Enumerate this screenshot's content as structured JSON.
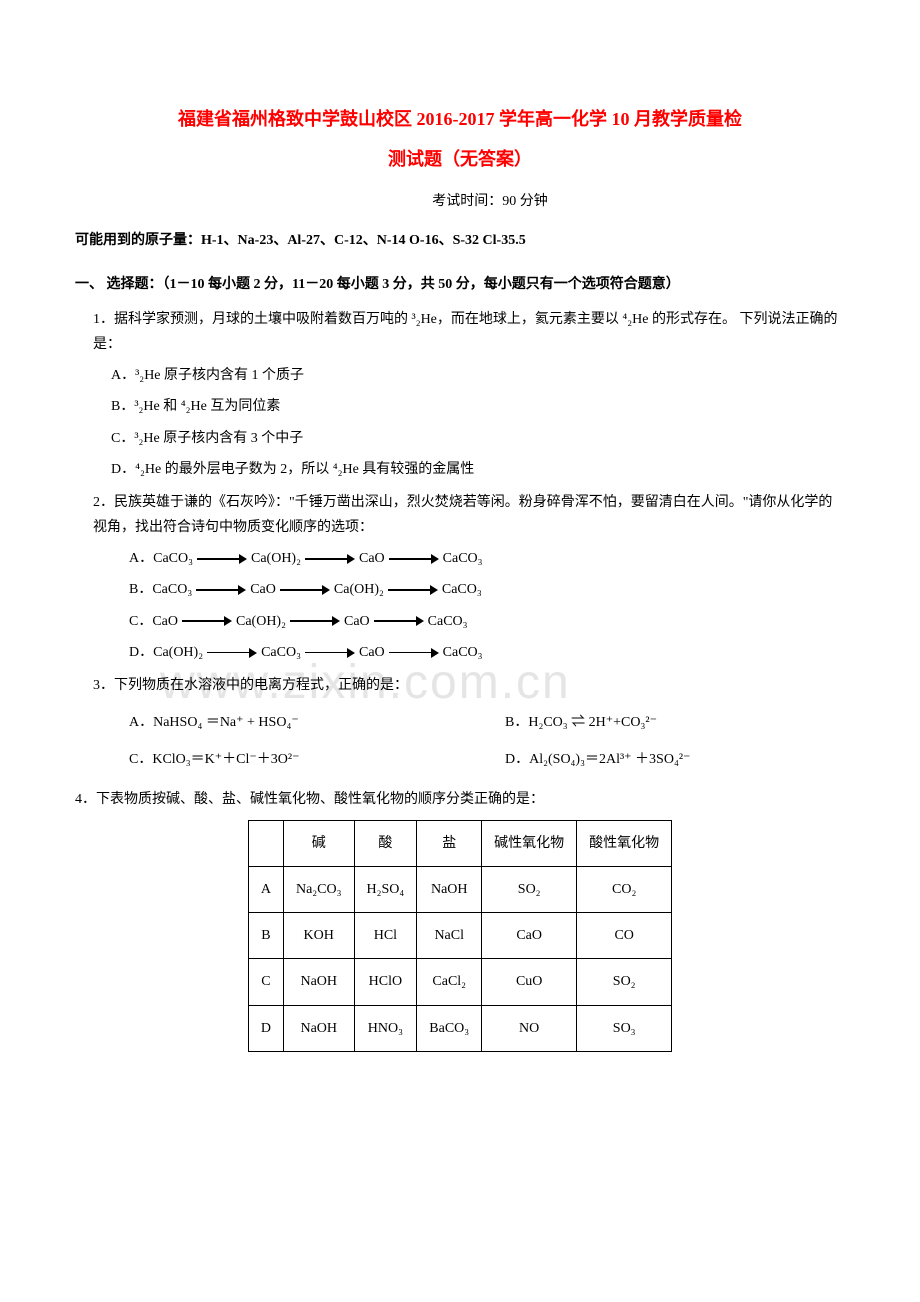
{
  "title_line1": "福建省福州格致中学鼓山校区 2016-2017 学年高一化学 10 月教学质量检",
  "title_line2": "测试题（无答案）",
  "exam_time": "考试时间：90 分钟",
  "atomic_mass": "可能用到的原子量：H-1、Na-23、Al-27、C-12、N-14  O-16、S-32  Cl-35.5",
  "section1": "一、 选择题：（1－10 每小题 2 分，11－20 每小题 3 分，共 50 分，每小题只有一个选项符合题意）",
  "q1": {
    "text": "1．据科学家预测，月球的土壤中吸附着数百万吨的 ³₂He，而在地球上，氦元素主要以 ⁴₂He 的形式存在。 下列说法正确的是：",
    "A": "A．³₂He 原子核内含有 1 个质子",
    "B": "B．³₂He 和 ⁴₂He 互为同位素",
    "C": "C．³₂He 原子核内含有 3 个中子",
    "D": "D．⁴₂He 的最外层电子数为 2，所以 ⁴₂He 具有较强的金属性"
  },
  "q2": {
    "text": "2．民族英雄于谦的《石灰吟》：\"千锤万凿出深山，烈火焚烧若等闲。粉身碎骨浑不怕，要留清白在人间。\"请你从化学的视角，找出符合诗句中物质变化顺序的选项：",
    "opts": {
      "A": [
        "A．CaCO₃",
        "Ca(OH)₂",
        "CaO",
        "CaCO₃"
      ],
      "B": [
        "B．CaCO₃",
        "CaO",
        "Ca(OH)₂",
        "CaCO₃"
      ],
      "C": [
        "C．CaO",
        "Ca(OH)₂",
        "CaO",
        "CaCO₃"
      ],
      "D": [
        "D．Ca(OH)₂",
        "CaCO₃",
        "CaO",
        "CaCO₃"
      ]
    }
  },
  "q3": {
    "text": "3．下列物质在水溶液中的电离方程式，正确的是：",
    "A": "A．NaHSO₄ ＝Na⁺ + HSO₄⁻",
    "B": "B．H₂CO₃ ⇌ 2H⁺+CO₃²⁻",
    "C": "C．KClO₃＝K⁺＋Cl⁻＋3O²⁻",
    "D": "D．Al₂(SO₄)₃＝2Al³⁺ ＋3SO₄²⁻"
  },
  "q4": {
    "text": "4．下表物质按碱、酸、盐、碱性氧化物、酸性氧化物的顺序分类正确的是：",
    "table": {
      "headers": [
        "",
        "碱",
        "酸",
        "盐",
        "碱性氧化物",
        "酸性氧化物"
      ],
      "rows": [
        [
          "A",
          "Na₂CO₃",
          "H₂SO₄",
          "NaOH",
          "SO₂",
          "CO₂"
        ],
        [
          "B",
          "KOH",
          "HCl",
          "NaCl",
          "CaO",
          "CO"
        ],
        [
          "C",
          "NaOH",
          "HClO",
          "CaCl₂",
          "CuO",
          "SO₂"
        ],
        [
          "D",
          "NaOH",
          "HNO₃",
          "BaCO₃",
          "NO",
          "SO₃"
        ]
      ]
    }
  },
  "watermark": "www.zixin.com.cn"
}
